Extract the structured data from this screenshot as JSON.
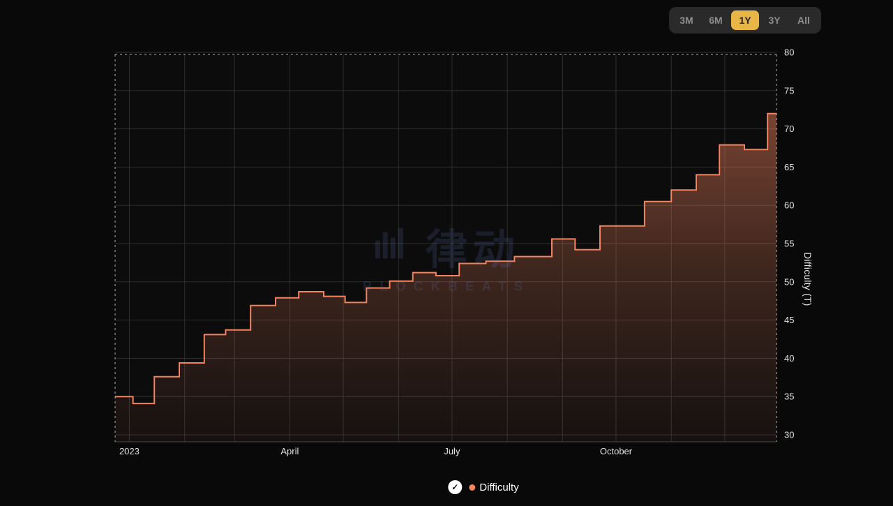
{
  "range_selector": {
    "options": [
      "3M",
      "6M",
      "1Y",
      "3Y",
      "All"
    ],
    "active": "1Y"
  },
  "legend": {
    "label": "Difficulty",
    "checked": true,
    "check_glyph": "✓"
  },
  "watermark": {
    "cjk": "律动",
    "latin": "BLOCKBEATS"
  },
  "colors": {
    "line": "#f4845f",
    "legend_dot": "#f4845f",
    "active_range_bg": "#e8b647",
    "active_range_text": "#222222",
    "grid": "#2e2e2e",
    "axis_text": "#e3e3e3",
    "plot_bg": "#0c0c0c",
    "dashed_border": "#cfcfcf"
  },
  "chart_data": {
    "type": "area",
    "subtype": "step-after",
    "title": "",
    "xlabel": "",
    "ylabel": "Difficulty (T)",
    "ylim": [
      30,
      80
    ],
    "yticks": [
      30,
      35,
      40,
      45,
      50,
      55,
      60,
      65,
      70,
      75,
      80
    ],
    "grid": true,
    "legend_position": "bottom",
    "x_domain": [
      "2022-12-24",
      "2023-12-30"
    ],
    "xticks": [
      {
        "label": "2023",
        "date": "2023-01-01"
      },
      {
        "label": "April",
        "date": "2023-04-01"
      },
      {
        "label": "July",
        "date": "2023-07-01"
      },
      {
        "label": "October",
        "date": "2023-10-01"
      }
    ],
    "series": [
      {
        "name": "Difficulty",
        "step": "after",
        "points": [
          [
            "2022-12-24",
            35.0
          ],
          [
            "2023-01-03",
            34.1
          ],
          [
            "2023-01-15",
            37.6
          ],
          [
            "2023-01-29",
            39.4
          ],
          [
            "2023-02-12",
            43.1
          ],
          [
            "2023-02-24",
            43.7
          ],
          [
            "2023-03-10",
            46.9
          ],
          [
            "2023-03-24",
            47.9
          ],
          [
            "2023-04-06",
            48.7
          ],
          [
            "2023-04-20",
            48.1
          ],
          [
            "2023-05-02",
            47.3
          ],
          [
            "2023-05-14",
            49.2
          ],
          [
            "2023-05-27",
            50.1
          ],
          [
            "2023-06-09",
            51.2
          ],
          [
            "2023-06-22",
            50.8
          ],
          [
            "2023-07-05",
            52.4
          ],
          [
            "2023-07-20",
            52.7
          ],
          [
            "2023-08-05",
            53.3
          ],
          [
            "2023-08-26",
            55.6
          ],
          [
            "2023-09-08",
            54.2
          ],
          [
            "2023-09-22",
            57.3
          ],
          [
            "2023-10-17",
            60.5
          ],
          [
            "2023-11-01",
            62.0
          ],
          [
            "2023-11-15",
            64.0
          ],
          [
            "2023-11-28",
            67.9
          ],
          [
            "2023-12-12",
            67.3
          ],
          [
            "2023-12-25",
            72.0
          ]
        ]
      }
    ]
  }
}
